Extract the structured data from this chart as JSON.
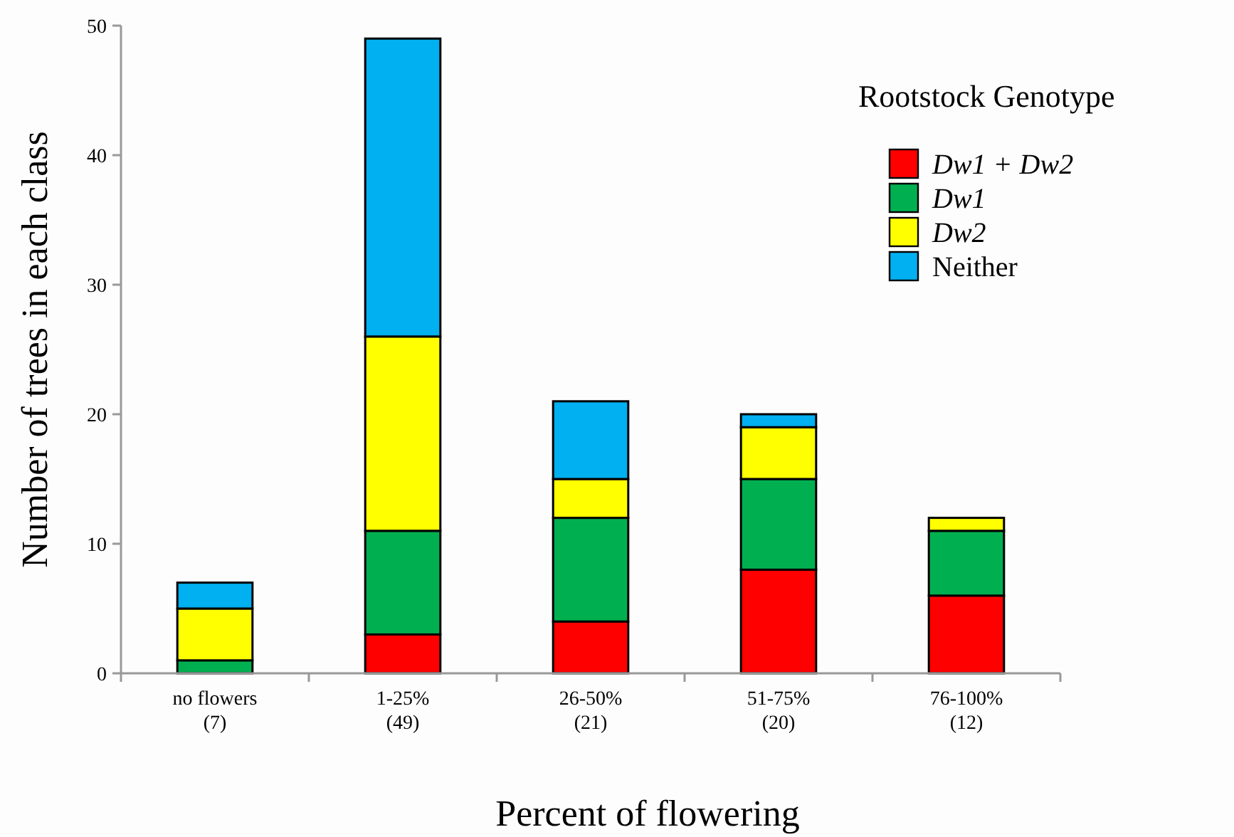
{
  "chart_data": {
    "type": "bar",
    "stacked": true,
    "xlabel": "Percent of flowering",
    "ylabel": "Number of trees in each class",
    "legend_title": "Rootstock Genotype",
    "legend": "top right",
    "categories": [
      "no flowers\n(7)",
      "1-25%\n(49)",
      "26-50%\n(21)",
      "51-75%\n(20)",
      "76-100%\n(12)"
    ],
    "ylim": [
      0,
      50
    ],
    "yticks": [
      0,
      10,
      20,
      30,
      40,
      50
    ],
    "grid": false,
    "series": [
      {
        "name": "Dw1 + Dw2",
        "color": "#ff0000",
        "values": [
          0,
          3,
          4,
          8,
          6
        ]
      },
      {
        "name": "Dw1",
        "color": "#00b050",
        "values": [
          1,
          8,
          8,
          7,
          5
        ]
      },
      {
        "name": "Dw2",
        "color": "#ffff00",
        "values": [
          4,
          15,
          3,
          4,
          1
        ]
      },
      {
        "name": "Neither",
        "color": "#00b0f0",
        "values": [
          2,
          23,
          6,
          1,
          0
        ]
      }
    ]
  }
}
